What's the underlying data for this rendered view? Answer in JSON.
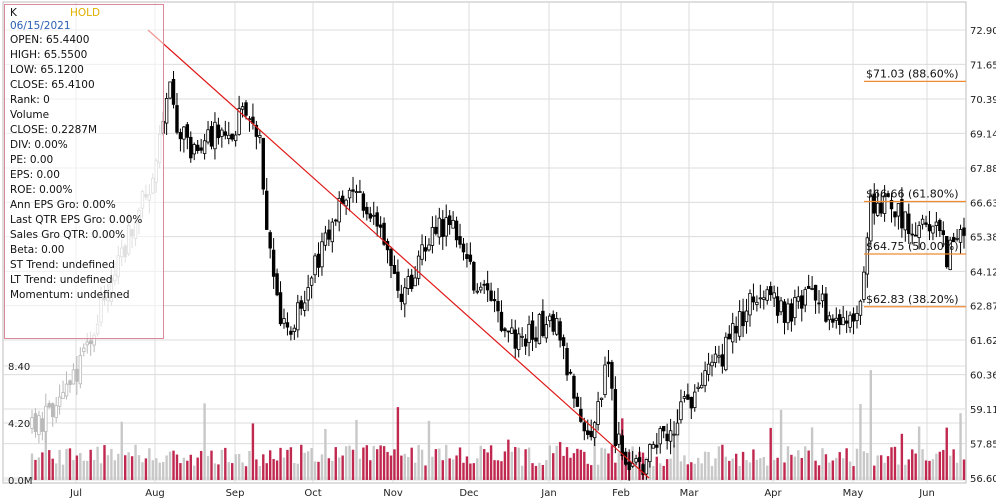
{
  "info": {
    "symbol": "K",
    "rating": "HOLD",
    "date": "06/15/2021",
    "rows": [
      "OPEN: 65.4400",
      "HIGH: 65.5500",
      "LOW: 65.1200",
      "CLOSE: 65.4100",
      "Rank: 0",
      "Volume",
      "CLOSE: 0.2287M",
      "DIV: 0.00%",
      "PE: 0.00",
      "EPS: 0.00",
      "ROE: 0.00%",
      "Ann EPS Gro: 0.00%",
      "Last QTR EPS Gro: 0.00%",
      "Sales Gro QTR: 0.00%",
      "Beta: 0.00",
      "ST Trend: undefined",
      "LT Trend: undefined",
      "Momentum: undefined"
    ]
  },
  "chart_data": {
    "type": "candlestick",
    "price_axis": {
      "ticks": [
        "72.90",
        "71.65",
        "70.39",
        "69.14",
        "67.88",
        "66.63",
        "65.38",
        "64.12",
        "62.87",
        "61.62",
        "60.36",
        "59.11",
        "57.85",
        "56.60"
      ],
      "range": [
        56.6,
        72.9
      ]
    },
    "volume_axis": {
      "ticks": [
        "8.40",
        "4.20",
        "0.0M"
      ],
      "range": [
        0,
        8.4
      ]
    },
    "months": [
      "Jul",
      "Aug",
      "Sep",
      "Oct",
      "Nov",
      "Dec",
      "Jan",
      "Feb",
      "Mar",
      "Apr",
      "May",
      "Jun"
    ],
    "fib_levels": [
      {
        "price": 71.03,
        "label": "$71.03 (88.60%)"
      },
      {
        "price": 66.66,
        "label": "$66.66 (61.80%)"
      },
      {
        "price": 64.75,
        "label": "$64.75 (50.00%)"
      },
      {
        "price": 62.83,
        "label": "$62.83 (38.20%)"
      }
    ],
    "trendline": {
      "start": {
        "month": "Aug",
        "price": 72.9
      },
      "end": {
        "month": "Feb",
        "price": 56.6
      }
    },
    "price_path": [
      [
        0,
        58.4
      ],
      [
        8,
        58.8
      ],
      [
        16,
        59.3
      ],
      [
        24,
        60.1
      ],
      [
        32,
        61.2
      ],
      [
        40,
        62.9
      ],
      [
        48,
        64.0
      ],
      [
        56,
        65.4
      ],
      [
        64,
        66.8
      ],
      [
        70,
        67.6
      ],
      [
        76,
        70.0
      ],
      [
        80,
        70.6
      ],
      [
        84,
        69.4
      ],
      [
        92,
        68.6
      ],
      [
        104,
        69.1
      ],
      [
        116,
        69.3
      ],
      [
        124,
        70.2
      ],
      [
        128,
        69.9
      ],
      [
        132,
        68.9
      ],
      [
        136,
        66.0
      ],
      [
        140,
        63.9
      ],
      [
        144,
        62.6
      ],
      [
        148,
        61.8
      ],
      [
        152,
        62.4
      ],
      [
        160,
        63.5
      ],
      [
        168,
        65.0
      ],
      [
        176,
        66.1
      ],
      [
        184,
        67.2
      ],
      [
        190,
        66.9
      ],
      [
        196,
        66.4
      ],
      [
        204,
        64.9
      ],
      [
        212,
        63.4
      ],
      [
        220,
        63.6
      ],
      [
        228,
        65.0
      ],
      [
        236,
        65.7
      ],
      [
        242,
        66.0
      ],
      [
        248,
        65.1
      ],
      [
        256,
        63.8
      ],
      [
        264,
        63.0
      ],
      [
        272,
        62.2
      ],
      [
        280,
        61.6
      ],
      [
        288,
        61.8
      ],
      [
        296,
        62.2
      ],
      [
        304,
        62.0
      ],
      [
        310,
        60.5
      ],
      [
        316,
        59.6
      ],
      [
        320,
        58.6
      ],
      [
        324,
        58.4
      ],
      [
        328,
        59.2
      ],
      [
        334,
        60.8
      ],
      [
        338,
        58.2
      ],
      [
        342,
        57.6
      ],
      [
        348,
        57.2
      ],
      [
        354,
        57.0
      ],
      [
        360,
        57.7
      ],
      [
        366,
        58.2
      ],
      [
        372,
        58.6
      ],
      [
        380,
        59.3
      ],
      [
        390,
        60.3
      ],
      [
        400,
        61.0
      ],
      [
        408,
        62.1
      ],
      [
        416,
        62.9
      ],
      [
        422,
        63.6
      ],
      [
        428,
        63.3
      ],
      [
        436,
        62.6
      ],
      [
        444,
        62.8
      ],
      [
        452,
        63.4
      ],
      [
        460,
        62.7
      ],
      [
        466,
        62.0
      ],
      [
        472,
        62.3
      ],
      [
        480,
        62.6
      ],
      [
        486,
        66.8
      ],
      [
        490,
        66.2
      ],
      [
        496,
        66.7
      ],
      [
        504,
        66.1
      ],
      [
        512,
        65.6
      ],
      [
        520,
        66.0
      ],
      [
        526,
        65.5
      ],
      [
        530,
        64.7
      ],
      [
        536,
        65.1
      ],
      [
        540,
        65.3
      ]
    ]
  }
}
